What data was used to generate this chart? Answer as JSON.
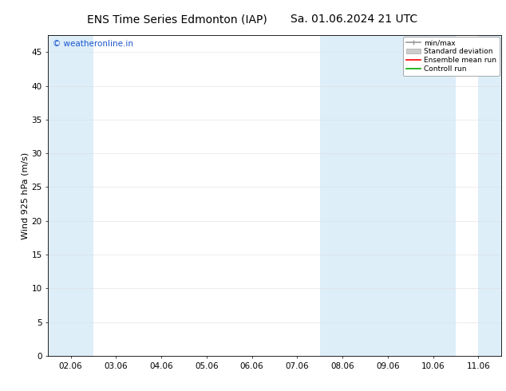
{
  "title_left": "ENS Time Series Edmonton (IAP)",
  "title_right": "Sa. 01.06.2024 21 UTC",
  "ylabel": "Wind 925 hPa (m/s)",
  "watermark": "© weatheronline.in",
  "ylim": [
    0,
    47.5
  ],
  "yticks": [
    0,
    5,
    10,
    15,
    20,
    25,
    30,
    35,
    40,
    45
  ],
  "x_labels": [
    "02.06",
    "03.06",
    "04.06",
    "05.06",
    "06.06",
    "07.06",
    "08.06",
    "09.06",
    "10.06",
    "11.06"
  ],
  "x_positions": [
    0,
    1,
    2,
    3,
    4,
    5,
    6,
    7,
    8,
    9
  ],
  "xlim": [
    -0.5,
    9.5
  ],
  "shade_bands": [
    {
      "xmin": -0.5,
      "xmax": 0.5,
      "color": "#ddeef9"
    },
    {
      "xmin": 5.5,
      "xmax": 7.5,
      "color": "#ddeef9"
    },
    {
      "xmin": 7.5,
      "xmax": 8.5,
      "color": "#ddeef9"
    },
    {
      "xmin": 9.0,
      "xmax": 9.5,
      "color": "#ddeef9"
    }
  ],
  "bg_color": "#ffffff",
  "plot_bg_color": "#ffffff",
  "title_fontsize": 10,
  "tick_fontsize": 7.5,
  "ylabel_fontsize": 8,
  "watermark_color": "#1a56cc",
  "watermark_fontsize": 7.5,
  "legend_items": [
    {
      "label": "min/max",
      "color": "#999999"
    },
    {
      "label": "Standard deviation",
      "color": "#cccccc"
    },
    {
      "label": "Ensemble mean run",
      "color": "#ff0000"
    },
    {
      "label": "Controll run",
      "color": "#00aa00"
    }
  ]
}
